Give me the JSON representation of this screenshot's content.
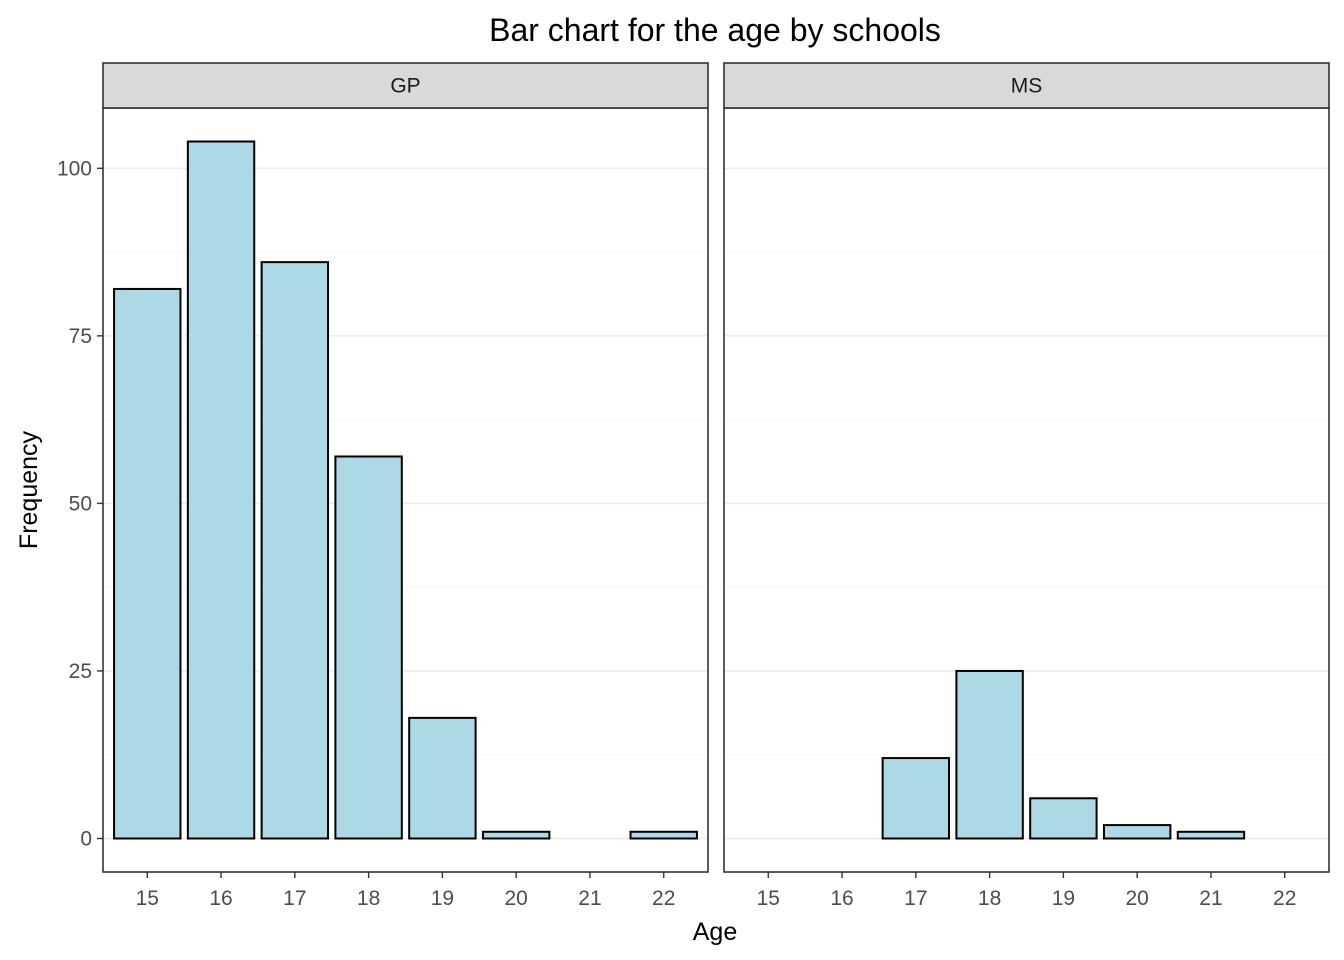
{
  "chart_data": {
    "type": "bar",
    "title": "Bar chart for the age by schools",
    "xlabel": "Age",
    "ylabel": "Frequency",
    "categories": [
      "15",
      "16",
      "17",
      "18",
      "19",
      "20",
      "21",
      "22"
    ],
    "yticks": [
      0,
      25,
      50,
      75,
      100
    ],
    "ylim": [
      -5,
      109
    ],
    "grid": true,
    "legend": "none",
    "colors": {
      "bar_fill": "#ADD8E6",
      "bar_stroke": "#000000",
      "strip_fill": "#D9D9D9",
      "grid_major": "#EBEBEB",
      "grid_minor": "#F5F5F5",
      "panel_border": "#333333",
      "tick_text": "#4D4D4D"
    },
    "facets": [
      {
        "name": "GP",
        "values": [
          82,
          104,
          86,
          57,
          18,
          1,
          0,
          1
        ]
      },
      {
        "name": "MS",
        "values": [
          0,
          0,
          12,
          25,
          6,
          2,
          1,
          0
        ]
      }
    ]
  }
}
